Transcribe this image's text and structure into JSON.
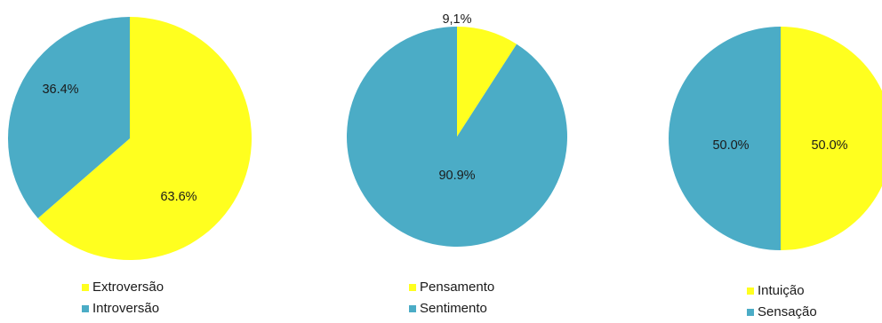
{
  "colors": {
    "yellow": "#FFFF1F",
    "teal": "#4BACC6"
  },
  "chart_data": [
    {
      "type": "pie",
      "slices": [
        {
          "label": "Extroversão",
          "value": 63.6,
          "display": "63.6%",
          "color": "#FFFF1F"
        },
        {
          "label": "Introversão",
          "value": 36.4,
          "display": "36.4%",
          "color": "#4BACC6"
        }
      ],
      "legend": [
        "Extroversão",
        "Introversão"
      ]
    },
    {
      "type": "pie",
      "slices": [
        {
          "label": "Pensamento",
          "value": 9.1,
          "display": "9,1%",
          "color": "#FFFF1F"
        },
        {
          "label": "Sentimento",
          "value": 90.9,
          "display": "90.9%",
          "color": "#4BACC6"
        }
      ],
      "legend": [
        "Pensamento",
        "Sentimento"
      ]
    },
    {
      "type": "pie",
      "slices": [
        {
          "label": "Intuição",
          "value": 50.0,
          "display": "50.0%",
          "color": "#FFFF1F"
        },
        {
          "label": "Sensação",
          "value": 50.0,
          "display": "50.0%",
          "color": "#4BACC6"
        }
      ],
      "legend": [
        "Intuição",
        "Sensação"
      ]
    }
  ]
}
